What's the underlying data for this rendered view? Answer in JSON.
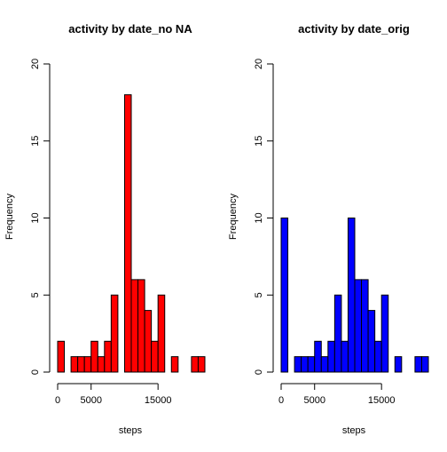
{
  "chart_data": [
    {
      "type": "bar",
      "subtype": "histogram",
      "title": "activity by date_no NA",
      "xlabel": "steps",
      "ylabel": "Frequency",
      "bin_width": 1000,
      "bin_start": 0,
      "counts": [
        2,
        0,
        1,
        1,
        1,
        2,
        1,
        2,
        5,
        0,
        18,
        6,
        6,
        4,
        2,
        5,
        0,
        1,
        0,
        0,
        1,
        1
      ],
      "xlim": [
        0,
        22000
      ],
      "ylim": [
        0,
        20
      ],
      "x_ticks": [
        0,
        5000,
        15000
      ],
      "y_ticks": [
        0,
        5,
        10,
        15,
        20
      ],
      "color": "#ff0000",
      "border_color": "#000000",
      "grid": false
    },
    {
      "type": "bar",
      "subtype": "histogram",
      "title": "activity by date_orig",
      "xlabel": "steps",
      "ylabel": "Frequency",
      "bin_width": 1000,
      "bin_start": 0,
      "counts": [
        10,
        0,
        1,
        1,
        1,
        2,
        1,
        2,
        5,
        2,
        10,
        6,
        6,
        4,
        2,
        5,
        0,
        1,
        0,
        0,
        1,
        1
      ],
      "xlim": [
        0,
        22000
      ],
      "ylim": [
        0,
        20
      ],
      "x_ticks": [
        0,
        5000,
        15000
      ],
      "y_ticks": [
        0,
        5,
        10,
        15,
        20
      ],
      "color": "#0000ff",
      "border_color": "#000000",
      "grid": false
    }
  ]
}
